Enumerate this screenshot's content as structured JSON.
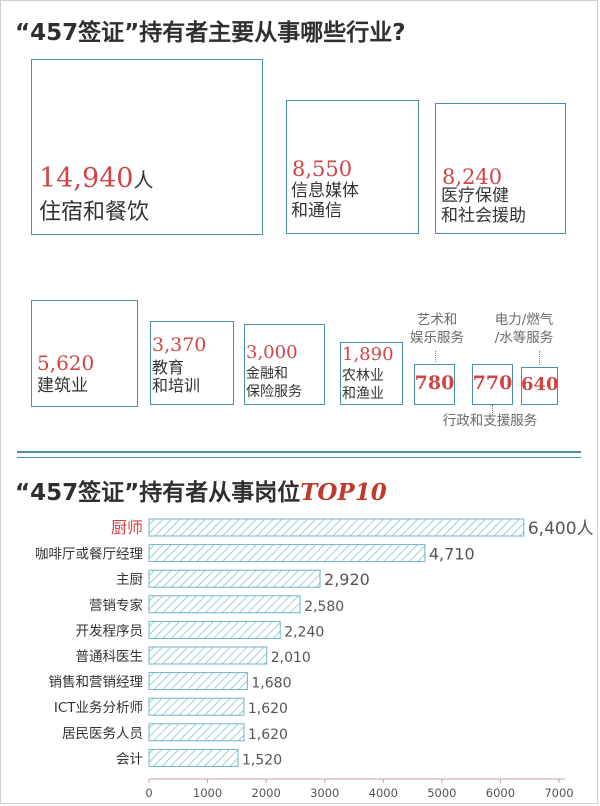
{
  "section1": {
    "title": "“457签证”持有者主要从事哪些行业?",
    "unit": "人",
    "industries": [
      {
        "value": "14,940",
        "label": "住宿和餐饮"
      },
      {
        "value": "8,550",
        "label": "信息媒体\n和通信"
      },
      {
        "value": "8,240",
        "label": "医疗保健\n和社会援助"
      },
      {
        "value": "5,620",
        "label": "建筑业"
      },
      {
        "value": "3,370",
        "label": "教育\n和培训"
      },
      {
        "value": "3,000",
        "label": "金融和\n保险服务"
      },
      {
        "value": "1,890",
        "label": "农林业\n和渔业"
      },
      {
        "value": "780",
        "label": "艺术和\n娱乐服务"
      },
      {
        "value": "770",
        "label": "行政和支援服务"
      },
      {
        "value": "640",
        "label": "电力/燃气\n/水等服务"
      }
    ]
  },
  "section2": {
    "title_prefix": "“457签证”持有者从事岗位",
    "title_accent": "TOP10"
  },
  "colors": {
    "accent_red": "#d04545",
    "frame_blue": "#4a8fa6",
    "hatch": "#6fb3c8"
  },
  "chart_data": {
    "type": "bar",
    "orientation": "horizontal",
    "title": "“457签证”持有者从事岗位TOP10",
    "categories": [
      "厨师",
      "咖啡厅或餐厅经理",
      "主厨",
      "营销专家",
      "开发程序员",
      "普通科医生",
      "销售和营销经理",
      "ICT业务分析师",
      "居民医务人员",
      "会计"
    ],
    "values": [
      6400,
      4710,
      2920,
      2580,
      2240,
      2010,
      1680,
      1620,
      1620,
      1520
    ],
    "value_labels": [
      "6,400",
      "4,710",
      "2,920",
      "2,580",
      "2,240",
      "2,010",
      "1,680",
      "1,620",
      "1,620",
      "1,520"
    ],
    "first_label_unit": "人",
    "xlim": [
      0,
      7000
    ],
    "xticks": [
      "0",
      "1000",
      "2000",
      "3000",
      "4000",
      "5000",
      "6000",
      "7000"
    ],
    "grid": false
  }
}
